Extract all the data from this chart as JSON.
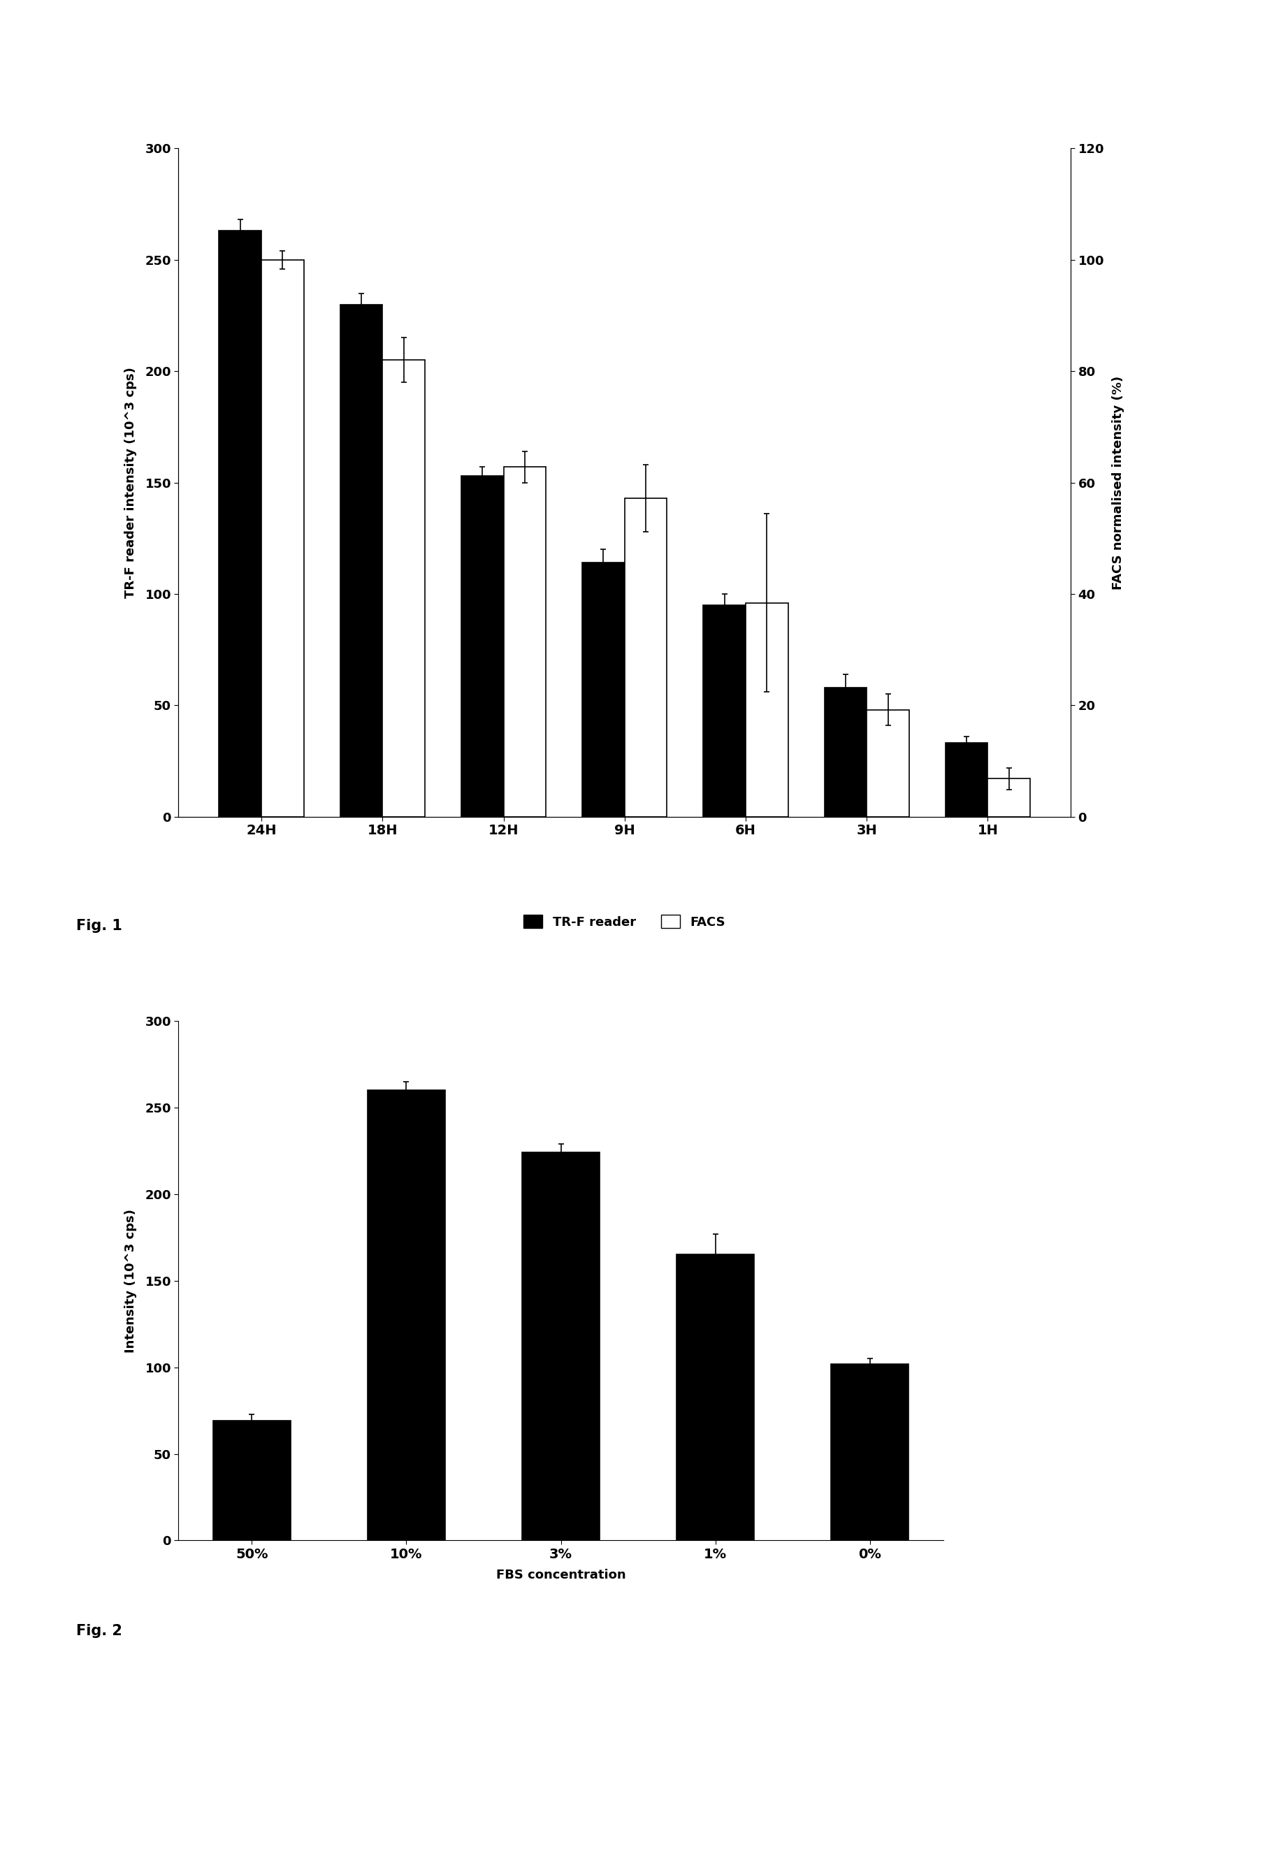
{
  "fig1": {
    "categories": [
      "24H",
      "18H",
      "12H",
      "9H",
      "6H",
      "3H",
      "1H"
    ],
    "trf_values": [
      263,
      230,
      153,
      114,
      95,
      58,
      33
    ],
    "trf_errors": [
      5,
      5,
      4,
      6,
      5,
      6,
      3
    ],
    "facs_values": [
      250,
      205,
      157,
      143,
      96,
      48,
      17
    ],
    "facs_errors": [
      4,
      10,
      7,
      15,
      40,
      7,
      5
    ],
    "ylabel_left": "TR-F reader intensity (10^3 cps)",
    "ylabel_right": "FACS normalised intensity (%)",
    "ylim_left": [
      0,
      300
    ],
    "ylim_right": [
      0,
      120
    ],
    "yticks_left": [
      0,
      50,
      100,
      150,
      200,
      250,
      300
    ],
    "yticks_right": [
      0,
      20,
      40,
      60,
      80,
      100,
      120
    ],
    "legend_labels": [
      "TR-F reader",
      "FACS"
    ],
    "bar_color_trf": "#000000",
    "bar_color_facs": "#ffffff",
    "bar_edgecolor": "#000000"
  },
  "fig2": {
    "categories": [
      "50%",
      "10%",
      "3%",
      "1%",
      "0%"
    ],
    "values": [
      69,
      260,
      224,
      165,
      102
    ],
    "errors": [
      4,
      5,
      5,
      12,
      3
    ],
    "ylabel": "Intensity (10^3 cps)",
    "xlabel": "FBS concentration",
    "ylim": [
      0,
      300
    ],
    "yticks": [
      0,
      50,
      100,
      150,
      200,
      250,
      300
    ],
    "bar_color": "#000000",
    "bar_edgecolor": "#000000"
  },
  "fig1_label": "Fig. 1",
  "fig2_label": "Fig. 2",
  "background_color": "#ffffff"
}
